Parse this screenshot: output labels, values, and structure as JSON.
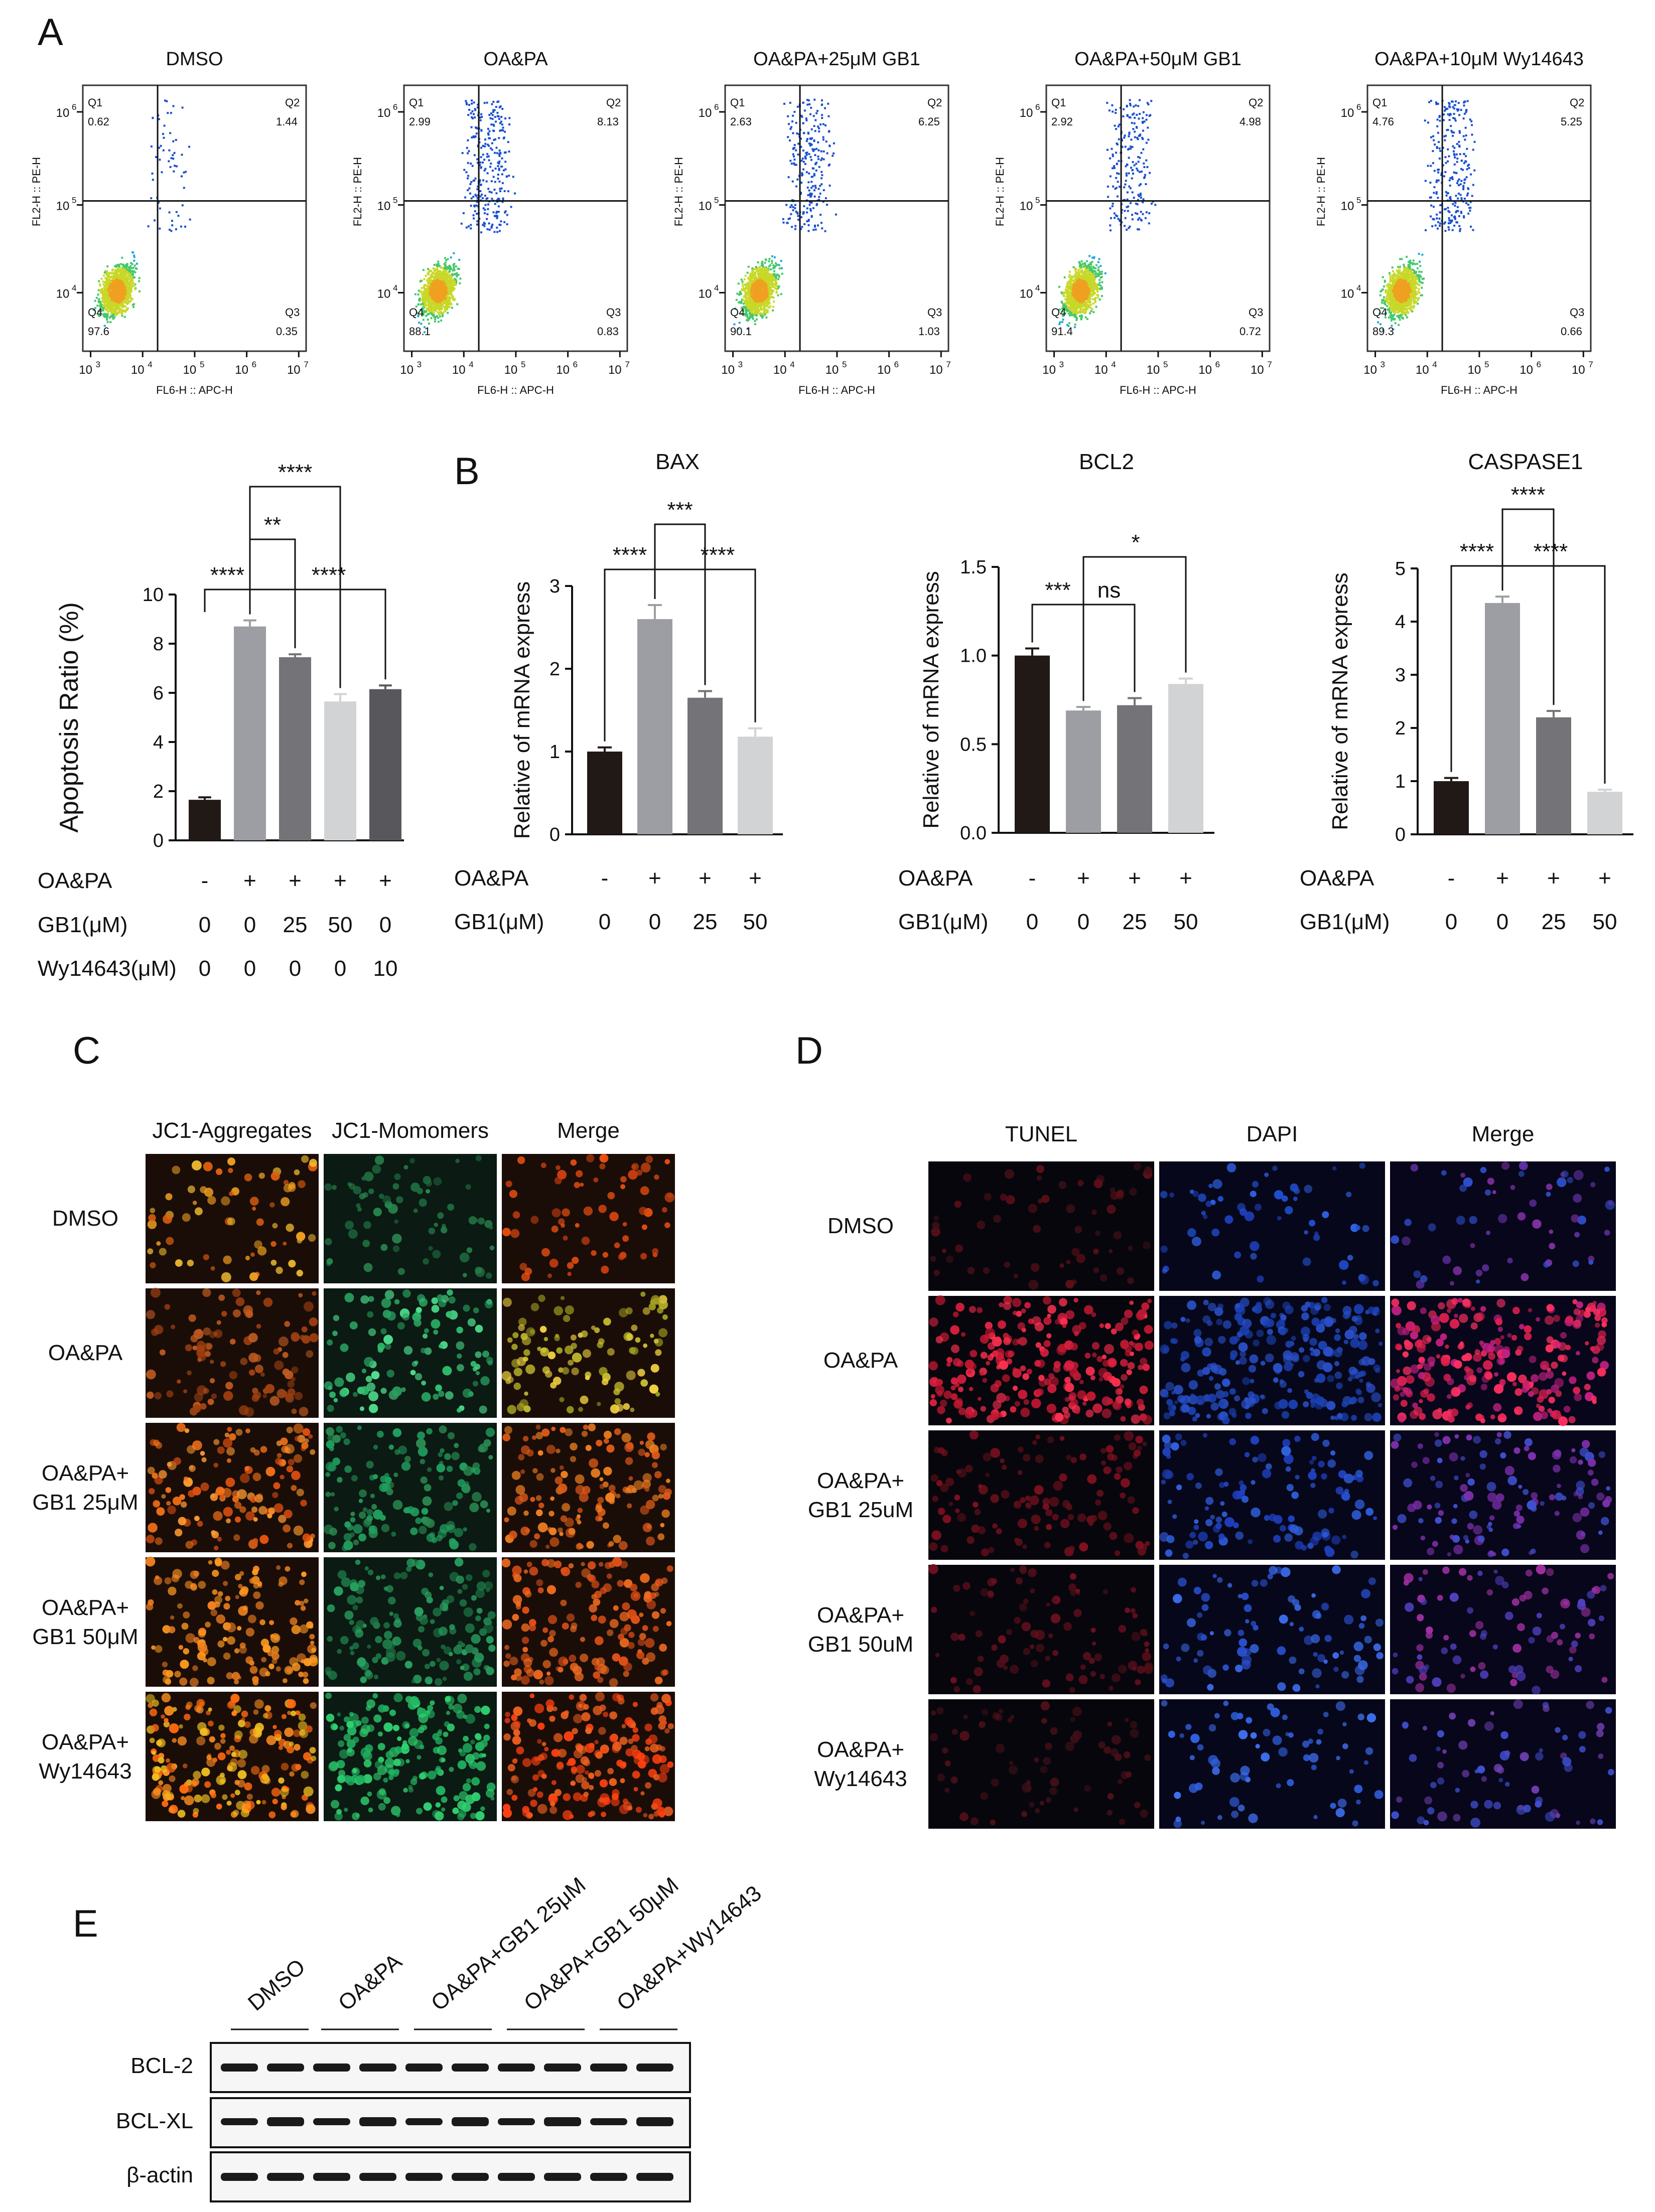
{
  "panel_labels": {
    "A": "A",
    "B": "B",
    "C": "C",
    "D": "D",
    "E": "E"
  },
  "panel_a": {
    "flow_plots": [
      {
        "title": "DMSO",
        "quadrants": {
          "Q1": "0.62",
          "Q2": "1.44",
          "Q3": "0.35",
          "Q4": "97.6"
        }
      },
      {
        "title": "OA&PA",
        "quadrants": {
          "Q1": "2.99",
          "Q2": "8.13",
          "Q3": "0.83",
          "Q4": "88.1"
        }
      },
      {
        "title": "OA&PA+25μM GB1",
        "quadrants": {
          "Q1": "2.63",
          "Q2": "6.25",
          "Q3": "1.03",
          "Q4": "90.1"
        }
      },
      {
        "title": "OA&PA+50μM GB1",
        "quadrants": {
          "Q1": "2.92",
          "Q2": "4.98",
          "Q3": "0.72",
          "Q4": "91.4"
        }
      },
      {
        "title": "OA&PA+10μM Wy14643",
        "quadrants": {
          "Q1": "4.76",
          "Q2": "5.25",
          "Q3": "0.66",
          "Q4": "89.3"
        }
      }
    ],
    "quadrant_names": {
      "Q1": "Q1",
      "Q2": "Q2",
      "Q3": "Q3",
      "Q4": "Q4"
    },
    "x_axis_label": "FL6-H :: APC-H",
    "y_axis_label": "FL2-H :: PE-H",
    "x_ticks": [
      "10",
      "10",
      "10",
      "10",
      "10"
    ],
    "x_tick_exps": [
      "3",
      "4",
      "5",
      "6",
      "7"
    ],
    "y_ticks": [
      "10",
      "10",
      "10"
    ],
    "y_tick_exps": [
      "4",
      "5",
      "6"
    ]
  },
  "treatment_table_a": {
    "rows": [
      {
        "label": "OA&PA",
        "values": [
          "-",
          "+",
          "+",
          "+",
          "+"
        ]
      },
      {
        "label": "GB1(μM)",
        "values": [
          "0",
          "0",
          "25",
          "50",
          "0"
        ]
      },
      {
        "label": "Wy14643(μM)",
        "values": [
          "0",
          "0",
          "0",
          "0",
          "10"
        ]
      }
    ]
  },
  "treatment_table_b": {
    "rows": [
      {
        "label": "OA&PA",
        "values": [
          "-",
          "+",
          "+",
          "+"
        ]
      },
      {
        "label": "GB1(μM)",
        "values": [
          "0",
          "0",
          "25",
          "50"
        ]
      }
    ]
  },
  "chart_data": [
    {
      "type": "bar",
      "title": "",
      "ylabel": "Apoptosis Ratio (%)",
      "ylim": [
        0,
        10
      ],
      "yticks": [
        "0",
        "2",
        "4",
        "6",
        "8",
        "10"
      ],
      "values": [
        1.65,
        8.7,
        7.45,
        5.65,
        6.15
      ],
      "errors": [
        0.1,
        0.25,
        0.12,
        0.3,
        0.15
      ],
      "colors": [
        "#211916",
        "#9c9ea3",
        "#747478",
        "#d2d3d5",
        "#58585c"
      ],
      "significance": [
        {
          "from": 0,
          "to": 1,
          "label": "****"
        },
        {
          "from": 1,
          "to": 2,
          "label": "**"
        },
        {
          "from": 1,
          "to": 3,
          "label": "****"
        },
        {
          "from": 1,
          "to": 4,
          "label": "****"
        }
      ]
    },
    {
      "type": "bar",
      "title": "BAX",
      "ylabel": "Relative of mRNA express",
      "ylim": [
        0,
        3
      ],
      "yticks": [
        "0",
        "1",
        "2",
        "3"
      ],
      "values": [
        1.0,
        2.6,
        1.65,
        1.18
      ],
      "errors": [
        0.05,
        0.17,
        0.08,
        0.1
      ],
      "colors": [
        "#211916",
        "#9c9ea3",
        "#747478",
        "#d2d3d5"
      ],
      "significance": [
        {
          "from": 0,
          "to": 1,
          "label": "****"
        },
        {
          "from": 1,
          "to": 2,
          "label": "***"
        },
        {
          "from": 1,
          "to": 3,
          "label": "****"
        }
      ]
    },
    {
      "type": "bar",
      "title": "BCL2",
      "ylabel": "Relative of mRNA express",
      "ylim": [
        0,
        1.5
      ],
      "yticks": [
        "0.0",
        "0.5",
        "1.0",
        "1.5"
      ],
      "values": [
        1.0,
        0.69,
        0.72,
        0.84
      ],
      "errors": [
        0.04,
        0.02,
        0.04,
        0.03
      ],
      "colors": [
        "#211916",
        "#9c9ea3",
        "#747478",
        "#d2d3d5"
      ],
      "significance": [
        {
          "from": 0,
          "to": 1,
          "label": "***"
        },
        {
          "from": 1,
          "to": 2,
          "label": "ns"
        },
        {
          "from": 1,
          "to": 3,
          "label": "*"
        }
      ]
    },
    {
      "type": "bar",
      "title": "CASPASE1",
      "ylabel": "Relative of mRNA express",
      "ylim": [
        0,
        5
      ],
      "yticks": [
        "0",
        "1",
        "2",
        "3",
        "4",
        "5"
      ],
      "values": [
        1.0,
        4.35,
        2.2,
        0.8
      ],
      "errors": [
        0.06,
        0.12,
        0.12,
        0.04
      ],
      "colors": [
        "#211916",
        "#9c9ea3",
        "#747478",
        "#d2d3d5"
      ],
      "significance": [
        {
          "from": 0,
          "to": 1,
          "label": "****"
        },
        {
          "from": 1,
          "to": 2,
          "label": "****"
        },
        {
          "from": 1,
          "to": 3,
          "label": "****"
        }
      ]
    }
  ],
  "panel_c": {
    "columns": [
      "JC1-Aggregates",
      "JC1-Momomers",
      "Merge"
    ],
    "rows": [
      "DMSO",
      "OA&PA",
      "OA&PA+\nGB1  25μM",
      "OA&PA+\nGB1  50μM",
      "OA&PA+\nWy14643"
    ]
  },
  "panel_d": {
    "columns": [
      "TUNEL",
      "DAPI",
      "Merge"
    ],
    "rows": [
      "DMSO",
      "OA&PA",
      "OA&PA+\nGB1 25uM",
      "OA&PA+\nGB1 50uM",
      "OA&PA+\nWy14643"
    ]
  },
  "panel_e": {
    "lanes": [
      "DMSO",
      "OA&PA",
      "OA&PA+GB1  25μM",
      "OA&PA+GB1  50μM",
      "OA&PA+Wy14643"
    ],
    "blots": [
      "BCL-2",
      "BCL-XL",
      "β-actin"
    ]
  }
}
